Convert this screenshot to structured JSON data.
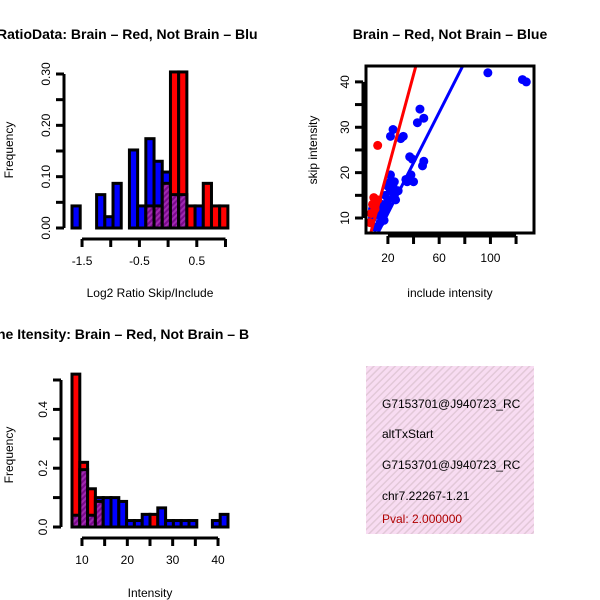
{
  "colors": {
    "blue": "#0000ff",
    "red": "#ff0000",
    "purple": "#8b1a9b",
    "panel": "#f6d8f0",
    "pval": "#b00000"
  },
  "chart_data": [
    {
      "type": "bar",
      "title": "RatioData: Brain – Red, Not Brain – Blu",
      "xlabel": "Log2 Ratio Skip/Include",
      "ylabel": "Frequency",
      "bin_start": -1.675,
      "bin_width": 0.143,
      "xlim": [
        -1.675,
        1.044
      ],
      "ylim": [
        0,
        0.3
      ],
      "xticks": [
        -1.5,
        -1.0,
        -0.5,
        0.0,
        0.5,
        1.0
      ],
      "xtick_labels": [
        "-1.5",
        "",
        "-0.5",
        "",
        "0.5",
        ""
      ],
      "yticks": [
        0,
        0.05,
        0.1,
        0.15,
        0.2,
        0.25,
        0.3
      ],
      "ytick_labels": [
        "0.00",
        "",
        "0.10",
        "",
        "0.20",
        "",
        "0.30"
      ],
      "series": [
        {
          "name": "Not Brain",
          "color": "blue",
          "values": [
            0.043,
            0,
            0,
            0.065,
            0.022,
            0.087,
            0,
            0.152,
            0.043,
            0.174,
            0.13,
            0.109,
            0.065,
            0.065,
            0,
            0.043,
            0,
            0,
            0
          ]
        },
        {
          "name": "Brain",
          "color": "red",
          "values": [
            0,
            0,
            0,
            0,
            0,
            0,
            0,
            0,
            0,
            0.043,
            0.043,
            0.087,
            0.304,
            0.304,
            0.043,
            0,
            0.087,
            0.043,
            0.043
          ]
        }
      ]
    },
    {
      "type": "scatter",
      "title": "Brain – Red, Not Brain – Blue",
      "xlabel": "include intensity",
      "ylabel": "skip intensity",
      "xlim": [
        2.9,
        134
      ],
      "ylim": [
        6.7,
        43.5
      ],
      "xticks": [
        20,
        40,
        60,
        80,
        100,
        120
      ],
      "xtick_labels": [
        "20",
        "",
        "60",
        "",
        "100",
        ""
      ],
      "yticks": [
        10,
        15,
        20,
        25,
        30,
        35,
        40
      ],
      "ytick_labels": [
        "10",
        "",
        "20",
        "",
        "30",
        "",
        "40"
      ],
      "series": [
        {
          "name": "Not Brain",
          "color": "blue",
          "points": [
            [
              98,
              42
            ],
            [
              125,
              40.5
            ],
            [
              128,
              40
            ],
            [
              45,
              34
            ],
            [
              48,
              32
            ],
            [
              43,
              31
            ],
            [
              32,
              28
            ],
            [
              30,
              27.5
            ],
            [
              24,
              29.5
            ],
            [
              22,
              28
            ],
            [
              37,
              23.5
            ],
            [
              39,
              23
            ],
            [
              48,
              22.5
            ],
            [
              47,
              21.5
            ],
            [
              38,
              19.5
            ],
            [
              35,
              18
            ],
            [
              34,
              18.5
            ],
            [
              40,
              18
            ],
            [
              22,
              19.5
            ],
            [
              25,
              18
            ],
            [
              20,
              17
            ],
            [
              15,
              13
            ],
            [
              18,
              15
            ],
            [
              20,
              14
            ],
            [
              22,
              16
            ],
            [
              25,
              15
            ],
            [
              12,
              11
            ],
            [
              8,
              10
            ],
            [
              10,
              8
            ],
            [
              14,
              9
            ],
            [
              18,
              12
            ],
            [
              16,
              11
            ],
            [
              20,
              13
            ],
            [
              12,
              12
            ],
            [
              8,
              12
            ],
            [
              26,
              14
            ],
            [
              28,
              16
            ],
            [
              24,
              17
            ],
            [
              17,
              9.5
            ],
            [
              14,
              10.5
            ],
            [
              10,
              13
            ],
            [
              22,
              18
            ]
          ],
          "fit": {
            "slope": 0.556,
            "intercept": -0.08
          }
        },
        {
          "name": "Brain",
          "color": "red",
          "points": [
            [
              12,
              26
            ],
            [
              9,
              14.5
            ],
            [
              8,
              13
            ],
            [
              6,
              9
            ],
            [
              10,
              12
            ],
            [
              12,
              14
            ],
            [
              7,
              11
            ]
          ],
          "fit": {
            "slope": 1.045,
            "intercept": -0.2
          }
        }
      ]
    },
    {
      "type": "bar",
      "title": "ne Itensity: Brain – Red, Not Brain – B",
      "xlabel": "Intensity",
      "ylabel": "Frequency",
      "bin_start": 7.8,
      "bin_width": 1.72,
      "xlim": [
        7.8,
        42.2
      ],
      "ylim": [
        0,
        0.5
      ],
      "xticks": [
        10,
        15,
        20,
        25,
        30,
        35,
        40
      ],
      "xtick_labels": [
        "10",
        "",
        "20",
        "",
        "30",
        "",
        "40"
      ],
      "yticks": [
        0,
        0.1,
        0.2,
        0.3,
        0.4,
        0.5
      ],
      "ytick_labels": [
        "0.0",
        "",
        "0.2",
        "",
        "0.4",
        ""
      ],
      "series": [
        {
          "name": "Not Brain",
          "color": "blue",
          "values": [
            0.04,
            0.195,
            0.04,
            0.1,
            0.1,
            0.1,
            0.087,
            0.022,
            0.022,
            0.043,
            0,
            0.065,
            0.022,
            0.022,
            0.022,
            0.022,
            0,
            0,
            0.022,
            0.043
          ]
        },
        {
          "name": "Brain",
          "color": "red",
          "values": [
            0.52,
            0.22,
            0.13,
            0.087,
            0,
            0,
            0,
            0,
            0,
            0,
            0.043,
            0,
            0,
            0,
            0,
            0,
            0,
            0,
            0,
            0
          ]
        }
      ]
    }
  ],
  "info_panel": {
    "lines": [
      "G7153701@J940723_RC",
      "altTxStart",
      "G7153701@J940723_RC",
      "chr7.22267-1.21"
    ],
    "pval": "Pval: 2.000000"
  }
}
